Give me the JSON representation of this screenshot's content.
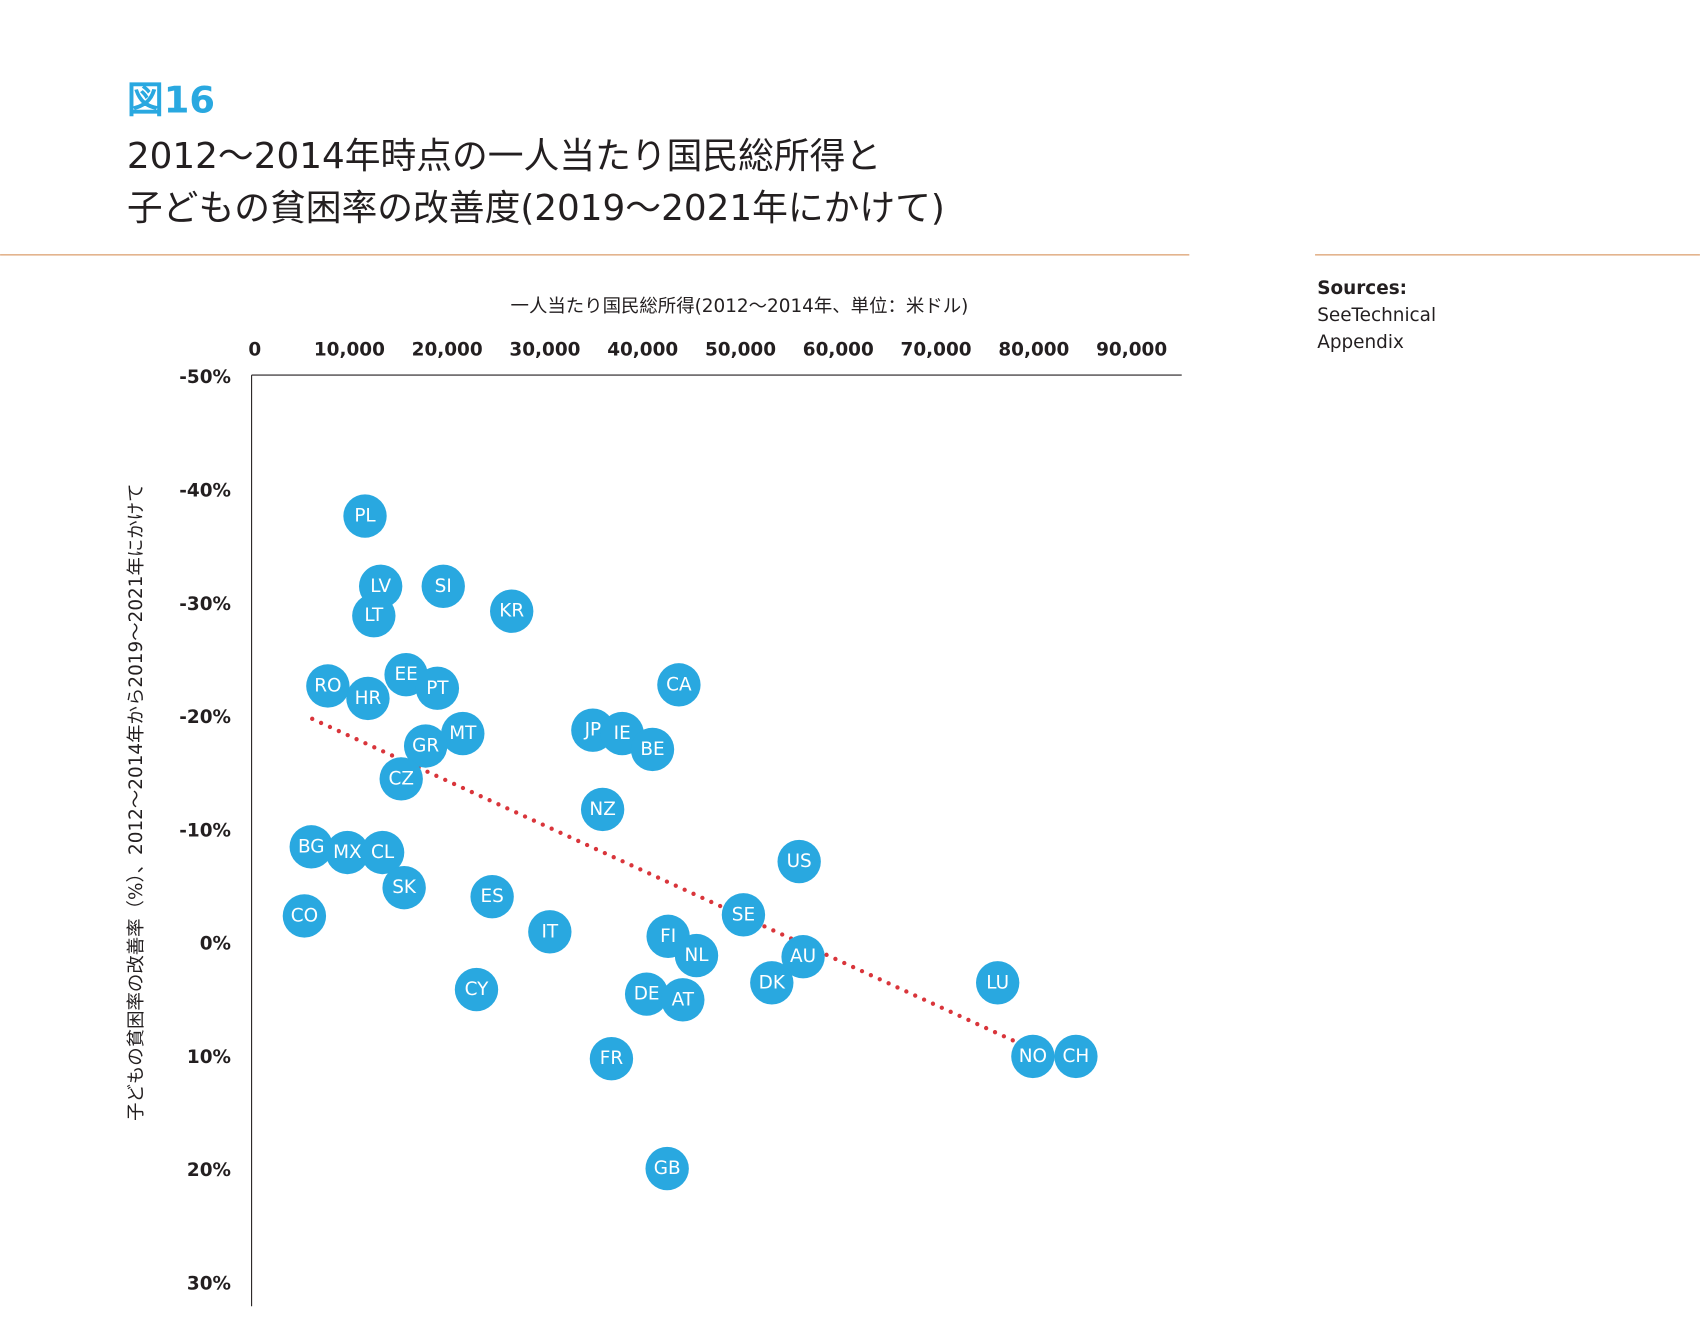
{
  "figure_label": "図16",
  "title_lines": [
    "2012〜2014年時点の一人当たり国民総所得と",
    "子どもの貧困率の改善度(2019〜2021年にかけて)"
  ],
  "sources": {
    "heading": "Sources:",
    "lines": [
      "SeeTechnical",
      "Appendix"
    ]
  },
  "colors": {
    "point": "#29a8e0",
    "trend": "#d9353b",
    "rule": "#e3b48e",
    "accent": "#29a8e0"
  },
  "chart_data": {
    "type": "scatter",
    "xlabel": "一人当たり国民総所得(2012〜2014年、単位：米ドル)",
    "ylabel": "子どもの貧困率の改善率（%）、2012〜2014年から2019〜2021年にかけて",
    "xlim": [
      0,
      95000
    ],
    "ylim": [
      -50,
      30
    ],
    "y_inverted_note": "negative values at top",
    "x_ticks": [
      "0",
      "10,000",
      "20,000",
      "30,000",
      "40,000",
      "50,000",
      "60,000",
      "70,000",
      "80,000",
      "90,000"
    ],
    "x_tick_values": [
      0,
      10000,
      20000,
      30000,
      40000,
      50000,
      60000,
      70000,
      80000,
      90000
    ],
    "y_ticks": [
      "-50%",
      "-40%",
      "-30%",
      "-20%",
      "-10%",
      "0%",
      "10%",
      "20%",
      "30%"
    ],
    "y_tick_values": [
      -50,
      -40,
      -30,
      -20,
      -10,
      0,
      10,
      20,
      30
    ],
    "points": [
      {
        "label": "PL",
        "x": 11600,
        "y": -37.7
      },
      {
        "label": "LV",
        "x": 13200,
        "y": -31.5
      },
      {
        "label": "SI",
        "x": 19600,
        "y": -31.5
      },
      {
        "label": "LT",
        "x": 12500,
        "y": -28.9
      },
      {
        "label": "KR",
        "x": 26600,
        "y": -29.3
      },
      {
        "label": "CA",
        "x": 43700,
        "y": -22.8
      },
      {
        "label": "EE",
        "x": 15800,
        "y": -23.7
      },
      {
        "label": "PT",
        "x": 19000,
        "y": -22.5
      },
      {
        "label": "RO",
        "x": 7800,
        "y": -22.7
      },
      {
        "label": "HR",
        "x": 11900,
        "y": -21.6
      },
      {
        "label": "JP",
        "x": 34900,
        "y": -18.8
      },
      {
        "label": "IE",
        "x": 37900,
        "y": -18.5
      },
      {
        "label": "BE",
        "x": 41000,
        "y": -17.1
      },
      {
        "label": "MT",
        "x": 21600,
        "y": -18.5
      },
      {
        "label": "GR",
        "x": 17800,
        "y": -17.4
      },
      {
        "label": "CZ",
        "x": 15300,
        "y": -14.5
      },
      {
        "label": "NZ",
        "x": 35900,
        "y": -11.8
      },
      {
        "label": "BG",
        "x": 6100,
        "y": -8.5
      },
      {
        "label": "MX",
        "x": 9800,
        "y": -8.0
      },
      {
        "label": "CL",
        "x": 13400,
        "y": -8.0
      },
      {
        "label": "US",
        "x": 56000,
        "y": -7.2
      },
      {
        "label": "SK",
        "x": 15600,
        "y": -4.9
      },
      {
        "label": "ES",
        "x": 24600,
        "y": -4.1
      },
      {
        "label": "CO",
        "x": 5400,
        "y": -2.4
      },
      {
        "label": "SE",
        "x": 50300,
        "y": -2.5
      },
      {
        "label": "IT",
        "x": 30500,
        "y": -1.0
      },
      {
        "label": "FI",
        "x": 42600,
        "y": -0.6
      },
      {
        "label": "NL",
        "x": 45500,
        "y": 1.1
      },
      {
        "label": "AU",
        "x": 56400,
        "y": 1.2
      },
      {
        "label": "DK",
        "x": 53200,
        "y": 3.5
      },
      {
        "label": "LU",
        "x": 76300,
        "y": 3.5
      },
      {
        "label": "CY",
        "x": 23000,
        "y": 4.1
      },
      {
        "label": "DE",
        "x": 40400,
        "y": 4.5
      },
      {
        "label": "AT",
        "x": 44100,
        "y": 5.0
      },
      {
        "label": "FR",
        "x": 36800,
        "y": 10.2
      },
      {
        "label": "NO",
        "x": 79900,
        "y": 10.0
      },
      {
        "label": "CH",
        "x": 84300,
        "y": 10.0
      },
      {
        "label": "GB",
        "x": 42500,
        "y": 19.9
      }
    ],
    "trendline": {
      "x": [
        6200,
        77900
      ],
      "y": [
        -19.8,
        8.6
      ]
    }
  }
}
